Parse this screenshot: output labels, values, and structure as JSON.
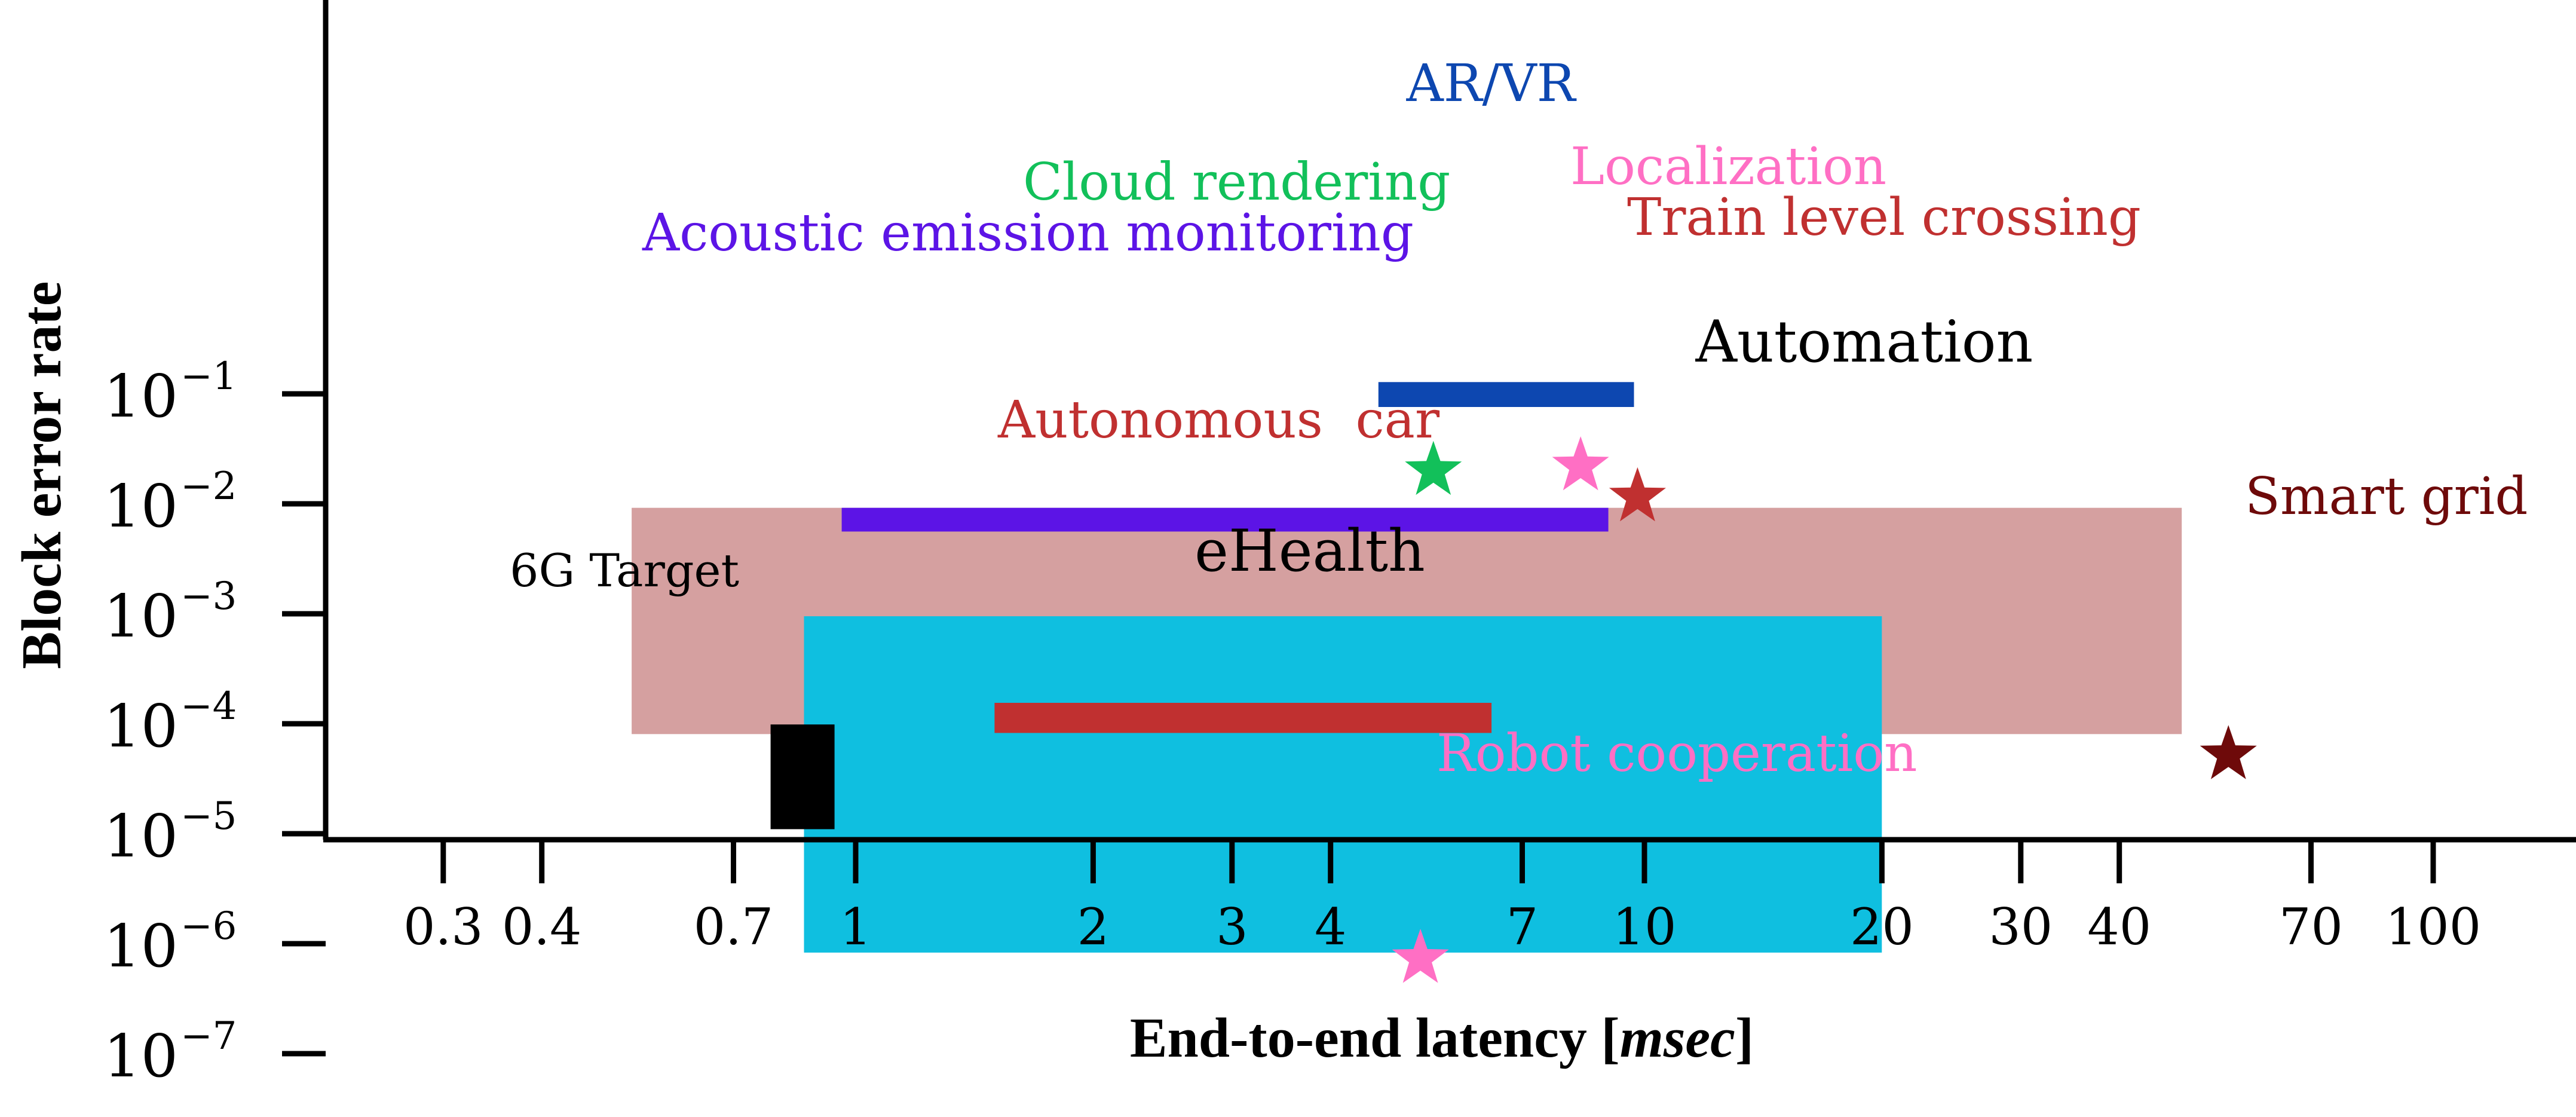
{
  "chart_data": {
    "type": "scatter",
    "title": "",
    "xlabel": {
      "main": "End-to-end latency [",
      "unit": "msec",
      "close": "]"
    },
    "ylabel": "Block error rate",
    "x_scale": "log",
    "y_scale": "log",
    "xlim": [
      0.2,
      160
    ],
    "ylim": [
      1e-08,
      60
    ],
    "grid": false,
    "legend": "none",
    "x_ticks": [
      {
        "value": 0.3,
        "label": "0.3"
      },
      {
        "value": 0.4,
        "label": "0.4"
      },
      {
        "value": 0.7,
        "label": "0.7"
      },
      {
        "value": 1,
        "label": "1"
      },
      {
        "value": 2,
        "label": "2"
      },
      {
        "value": 3,
        "label": "3"
      },
      {
        "value": 4,
        "label": "4"
      },
      {
        "value": 7,
        "label": "7"
      },
      {
        "value": 10,
        "label": "10"
      },
      {
        "value": 20,
        "label": "20"
      },
      {
        "value": 30,
        "label": "30"
      },
      {
        "value": 40,
        "label": "40"
      },
      {
        "value": 70,
        "label": "70"
      },
      {
        "value": 100,
        "label": "100"
      }
    ],
    "y_ticks": [
      {
        "value": 0.1,
        "base": "10",
        "exp": "−1"
      },
      {
        "value": 0.01,
        "base": "10",
        "exp": "−2"
      },
      {
        "value": 0.001,
        "base": "10",
        "exp": "−3"
      },
      {
        "value": 0.0001,
        "base": "10",
        "exp": "−4"
      },
      {
        "value": 1e-05,
        "base": "10",
        "exp": "−5"
      },
      {
        "value": 1e-06,
        "base": "10",
        "exp": "−6"
      },
      {
        "value": 1e-07,
        "base": "10",
        "exp": "−7"
      }
    ],
    "regions": [
      {
        "id": "automation",
        "label": "Automation",
        "x": [
          0.52,
          48
        ],
        "y": [
          8.06e-05,
          0.0092
        ],
        "color": "#d5a0a0",
        "label_color": "#000000"
      },
      {
        "id": "ehealth",
        "label": "eHealth",
        "x": [
          0.86,
          20
        ],
        "y": [
          8.3e-07,
          0.00095
        ],
        "color": "#0fbfe0",
        "label_color": "#000000"
      },
      {
        "id": "acoustic",
        "label": "Acoustic emission monitoring",
        "x": [
          0.96,
          9
        ],
        "y": [
          0.0056,
          0.0092
        ],
        "color": "#5c14e6",
        "label_color": "#5c14e6"
      },
      {
        "id": "autonomous",
        "label": "Autonomous  car",
        "x": [
          1.5,
          6.4
        ],
        "y": [
          8.25e-05,
          0.000155
        ],
        "color": "#c03030",
        "label_color": "#c03030"
      },
      {
        "id": "arvr",
        "label": "AR/VR",
        "x": [
          4.6,
          9.7
        ],
        "y": [
          0.076,
          0.128
        ],
        "color": "#0d47b0",
        "label_color": "#0d47b0"
      },
      {
        "id": "target",
        "label": "6G Target",
        "x": [
          0.78,
          0.94
        ],
        "y": [
          1.1e-05,
          9.85e-05
        ],
        "color": "#000000",
        "label_color": "#000000"
      }
    ],
    "points": [
      {
        "id": "cloud",
        "label": "Cloud rendering",
        "x": 5.4,
        "y": 0.02,
        "color": "#12c05a"
      },
      {
        "id": "localization",
        "label": "Localization",
        "x": 8.3,
        "y": 0.022,
        "color": "#ff6fc4"
      },
      {
        "id": "train",
        "label": "Train level crossing",
        "x": 9.8,
        "y": 0.0115,
        "color": "#c03030"
      },
      {
        "id": "smartgrid",
        "label": "Smart grid",
        "x": 55,
        "y": 5.2e-05,
        "color": "#6e0a0a"
      },
      {
        "id": "robot",
        "label": "Robot cooperation",
        "x": 5.2,
        "y": 7.3e-07,
        "color": "#ff6fc4"
      }
    ]
  }
}
